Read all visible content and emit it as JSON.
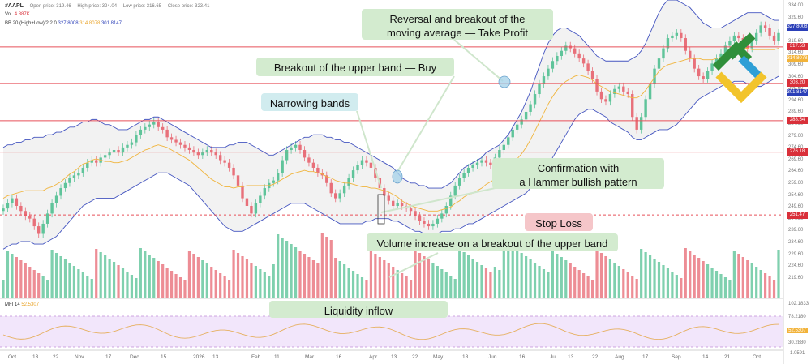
{
  "header": {
    "ticker": "#AAPL",
    "open": "Open price: 319.46",
    "high": "High price: 324.04",
    "low": "Low price: 316.65",
    "close": "Close price: 323.41",
    "vol_label": "Vol.",
    "vol_value": "4.887K",
    "bb_label": "BB 20 (High+Low)/2 2 0",
    "bb_upper": "327.8008",
    "bb_mid": "314.8078",
    "bb_lower": "301.8147",
    "mfi_label": "MFI 14",
    "mfi_value": "52.5307"
  },
  "annotations": {
    "take_profit": "Reversal and breakout of the moving average — Take Profit",
    "take_profit_l1": "Reversal and breakout of the",
    "take_profit_l2": "moving average — Take Profit",
    "buy": "Breakout of the upper band — Buy",
    "narrowing": "Narrowing bands",
    "hammer_l1": "Confirmation with",
    "hammer_l2": "a Hammer bullish pattern",
    "stop_loss": "Stop Loss",
    "volume": "Volume increase on a breakout of the upper band",
    "liquidity": "Liquidity inflow"
  },
  "price_levels": [
    {
      "value": "317.53",
      "color": "#d9303a"
    },
    {
      "value": "303.20",
      "color": "#d9303a"
    },
    {
      "value": "288.54",
      "color": "#d9303a"
    },
    {
      "value": "276.18",
      "color": "#d9303a"
    },
    {
      "value": "251.47",
      "color": "#d9303a"
    }
  ],
  "price_tags": [
    {
      "value": "327.8008",
      "color": "#2b3fb8"
    },
    {
      "value": "314.8078",
      "color": "#f2b33a"
    },
    {
      "value": "301.8147",
      "color": "#2b3fb8"
    }
  ],
  "price_ticks": [
    "334.00",
    "329.60",
    "324.60",
    "319.60",
    "314.60",
    "309.60",
    "304.60",
    "299.60",
    "294.60",
    "289.60",
    "284.60",
    "279.60",
    "274.60",
    "269.60",
    "264.60",
    "259.60",
    "254.60",
    "249.60",
    "244.60",
    "239.60",
    "234.60",
    "229.60",
    "224.60",
    "219.60"
  ],
  "mfi_ticks": [
    "102.1833",
    "78.2180",
    "52.5307",
    "30.2880",
    "-1.0591"
  ],
  "x_ticks": [
    "Oct",
    "13",
    "22",
    "Nov",
    "17",
    "Dec",
    "15",
    "2026",
    "13",
    "Feb",
    "11",
    "Mar",
    "16",
    "Apr",
    "13",
    "22",
    "May",
    "18",
    "Jun",
    "16",
    "Jul",
    "13",
    "22",
    "Aug",
    "17",
    "Sep",
    "14",
    "21",
    "Oct"
  ],
  "colors": {
    "up": "#5fc49a",
    "down": "#e8707a",
    "band": "#4455c0",
    "ma": "#f0b43c",
    "level": "#e8505a",
    "mfi": "#e6b060",
    "mfi_bg": "#f2e6fb"
  },
  "chart_data": {
    "type": "candlestick",
    "title": "#AAPL",
    "ylim": [
      219.6,
      336
    ],
    "close": [
      254,
      256,
      258,
      255,
      253,
      251,
      250,
      247,
      244,
      248,
      252,
      256,
      259,
      262,
      264,
      266,
      267,
      268,
      270,
      272,
      273,
      272,
      274,
      275,
      276,
      277,
      276,
      278,
      279,
      280,
      283,
      285,
      286,
      287,
      288,
      286,
      285,
      282,
      281,
      280,
      279,
      278,
      277,
      276,
      275,
      276,
      277,
      276,
      275,
      273,
      272,
      270,
      267,
      263,
      258,
      255,
      252,
      256,
      259,
      262,
      264,
      265,
      268,
      273,
      277,
      278,
      279,
      277,
      274,
      272,
      270,
      268,
      267,
      264,
      260,
      258,
      260,
      263,
      266,
      269,
      271,
      273,
      272,
      270,
      266,
      262,
      259,
      257,
      255,
      256,
      255,
      254,
      253,
      251,
      249,
      248,
      247,
      248,
      250,
      252,
      255,
      259,
      263,
      266,
      268,
      270,
      271,
      272,
      273,
      272,
      271,
      274,
      277,
      279,
      282,
      285,
      287,
      289,
      292,
      295,
      299,
      303,
      306,
      309,
      312,
      314,
      316,
      318,
      317,
      315,
      313,
      311,
      308,
      305,
      300,
      297,
      296,
      299,
      301,
      302,
      300,
      299,
      290,
      285,
      290,
      297,
      303,
      309,
      313,
      317,
      321,
      322,
      323,
      321,
      316,
      313,
      309,
      306,
      305,
      308,
      311,
      313,
      315,
      318,
      320,
      322,
      321,
      319,
      317,
      320,
      323,
      326,
      325,
      322,
      320,
      323
    ],
    "bb_upper": [
      278,
      279,
      279,
      280,
      280,
      281,
      281,
      282,
      282,
      282,
      283,
      283,
      284,
      284,
      285,
      286,
      286,
      287,
      288,
      288,
      289,
      289,
      288,
      287,
      287,
      286,
      285,
      285,
      285,
      286,
      287,
      288,
      289,
      289,
      290,
      290,
      289,
      288,
      287,
      286,
      285,
      284,
      283,
      282,
      281,
      280,
      279,
      278,
      278,
      278,
      278,
      279,
      279,
      280,
      280,
      280,
      279,
      278,
      277,
      276,
      275,
      275,
      276,
      277,
      278,
      279,
      280,
      281,
      282,
      282,
      283,
      283,
      283,
      282,
      282,
      281,
      281,
      280,
      280,
      279,
      278,
      277,
      276,
      275,
      274,
      273,
      272,
      271,
      270,
      268,
      266,
      265,
      264,
      264,
      263,
      263,
      262,
      262,
      262,
      262,
      263,
      264,
      266,
      268,
      270,
      271,
      272,
      273,
      274,
      276,
      277,
      278,
      279,
      281,
      283,
      286,
      289,
      292,
      296,
      300,
      305,
      310,
      315,
      319,
      322,
      324,
      325,
      325,
      324,
      323,
      322,
      320,
      318,
      316,
      314,
      313,
      312,
      312,
      312,
      312,
      312,
      312,
      313,
      314,
      316,
      319,
      323,
      327,
      331,
      334,
      336,
      336,
      336,
      335,
      334,
      333,
      331,
      329,
      327,
      326,
      325,
      325,
      325,
      326,
      327,
      328,
      329,
      330,
      331,
      331,
      331,
      331,
      330,
      329,
      328,
      328
    ],
    "bb_lower": [
      238,
      239,
      240,
      240,
      241,
      241,
      241,
      240,
      240,
      240,
      241,
      242,
      243,
      245,
      247,
      249,
      251,
      253,
      255,
      256,
      257,
      258,
      258,
      258,
      258,
      258,
      259,
      260,
      261,
      262,
      263,
      264,
      265,
      266,
      267,
      268,
      268,
      268,
      267,
      266,
      265,
      264,
      263,
      261,
      259,
      257,
      255,
      253,
      251,
      249,
      247,
      246,
      245,
      245,
      245,
      246,
      247,
      248,
      249,
      250,
      251,
      252,
      253,
      254,
      255,
      256,
      256,
      256,
      256,
      255,
      254,
      253,
      252,
      251,
      250,
      249,
      248,
      248,
      248,
      248,
      248,
      248,
      249,
      249,
      250,
      250,
      250,
      250,
      249,
      249,
      248,
      247,
      246,
      245,
      245,
      244,
      244,
      244,
      244,
      245,
      245,
      245,
      246,
      246,
      247,
      248,
      248,
      249,
      250,
      251,
      252,
      253,
      254,
      255,
      256,
      257,
      258,
      259,
      260,
      262,
      264,
      266,
      268,
      271,
      274,
      277,
      280,
      283,
      286,
      289,
      291,
      292,
      293,
      293,
      292,
      291,
      290,
      288,
      287,
      286,
      285,
      284,
      282,
      281,
      281,
      282,
      283,
      284,
      285,
      285,
      285,
      286,
      287,
      289,
      291,
      293,
      295,
      297,
      298,
      299,
      300,
      301,
      302,
      303,
      303,
      304,
      304,
      304,
      303,
      302,
      302,
      302,
      303,
      304,
      305,
      306
    ]
  }
}
